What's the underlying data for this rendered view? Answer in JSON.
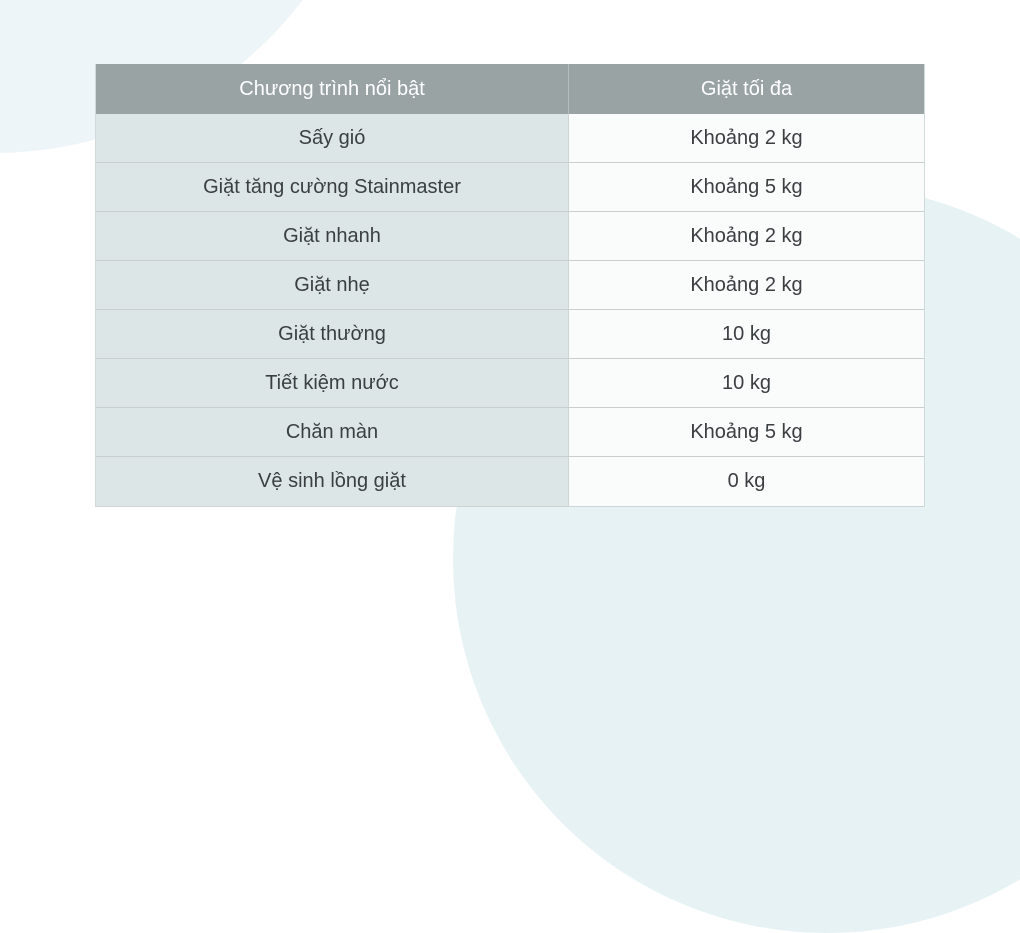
{
  "table": {
    "columns": [
      {
        "label": "Chương trình nổi bật"
      },
      {
        "label": "Giặt tối đa"
      }
    ],
    "rows": [
      {
        "program": "Sấy gió",
        "max_load": "Khoảng 2 kg"
      },
      {
        "program": "Giặt tăng cường Stainmaster",
        "max_load": "Khoảng 5 kg"
      },
      {
        "program": "Giặt nhanh",
        "max_load": "Khoảng 2 kg"
      },
      {
        "program": "Giặt nhẹ",
        "max_load": "Khoảng 2 kg"
      },
      {
        "program": "Giặt thường",
        "max_load": "10 kg"
      },
      {
        "program": "Tiết kiệm nước",
        "max_load": "10 kg"
      },
      {
        "program": "Chăn màn",
        "max_load": "Khoảng 5 kg"
      },
      {
        "program": "Vệ sinh lồng giặt",
        "max_load": "0 kg"
      }
    ]
  },
  "colors": {
    "header_bg": "#9aa3a4",
    "header_text": "#ffffff",
    "program_cell_bg": "#dde6e6",
    "value_cell_bg": "#fafbfb",
    "row_border": "#c9cfcf",
    "body_text": "#3a3f42",
    "blob_top_left": "#eef5f9",
    "blob_bottom_right": "#e6f2f4"
  }
}
